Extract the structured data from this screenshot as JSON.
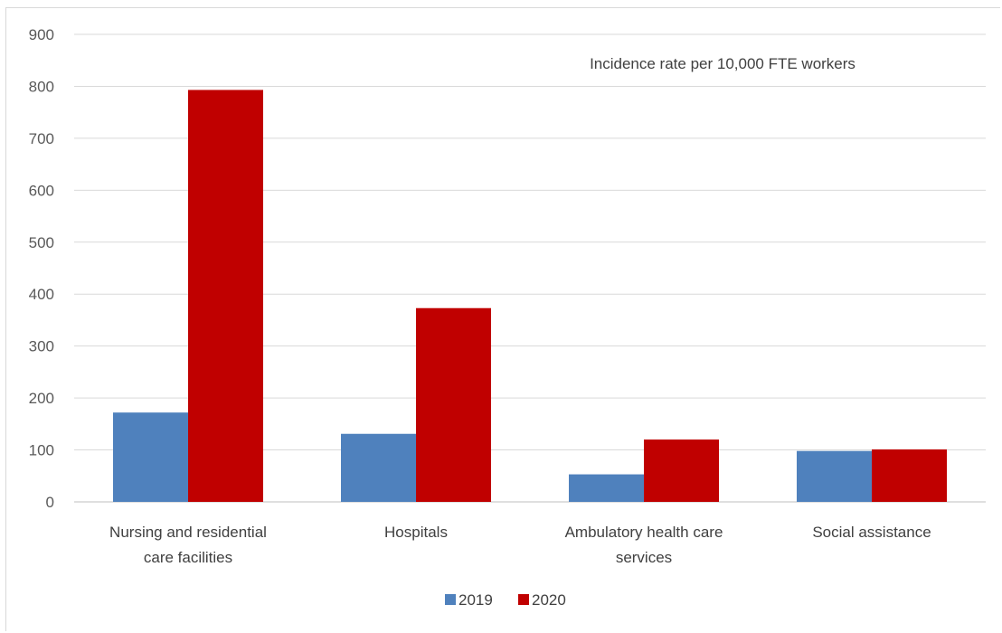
{
  "chart_data": {
    "type": "bar",
    "title": "",
    "annotation": "Incidence rate per 10,000 FTE workers",
    "categories": [
      [
        "Nursing and residential",
        "care facilities"
      ],
      [
        "Hospitals"
      ],
      [
        "Ambulatory health care",
        "services"
      ],
      [
        "Social assistance"
      ]
    ],
    "series": [
      {
        "name": "2019",
        "color": "#4f81bd",
        "values": [
          172,
          131,
          53,
          98
        ]
      },
      {
        "name": "2020",
        "color": "#c00000",
        "values": [
          793,
          373,
          120,
          101
        ]
      }
    ],
    "ylim": [
      0,
      900
    ],
    "yticks": [
      0,
      100,
      200,
      300,
      400,
      500,
      600,
      700,
      800,
      900
    ],
    "grid": true,
    "legend_position": "bottom"
  }
}
